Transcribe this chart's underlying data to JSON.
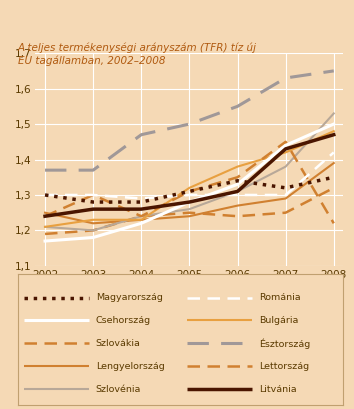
{
  "title": "A teljes termékenységi arányszám (TFR) tíz új\nEU tagállamban, 2002–2008",
  "years": [
    2002,
    2003,
    2004,
    2005,
    2006,
    2007,
    2008
  ],
  "series": [
    {
      "name": "Magyarország",
      "values": [
        1.3,
        1.28,
        1.28,
        1.31,
        1.34,
        1.32,
        1.35
      ],
      "color": "#4a1500",
      "linestyle": "dotted",
      "linewidth": 2.5,
      "zorder": 6,
      "dashes": null
    },
    {
      "name": "Csehország",
      "values": [
        1.17,
        1.18,
        1.22,
        1.28,
        1.33,
        1.44,
        1.5
      ],
      "color": "#ffffff",
      "linestyle": "solid",
      "linewidth": 2.2,
      "zorder": 5,
      "dashes": null
    },
    {
      "name": "Szlovákia",
      "values": [
        1.19,
        1.2,
        1.24,
        1.25,
        1.24,
        1.25,
        1.32
      ],
      "color": "#d08030",
      "linestyle": "dashed",
      "linewidth": 1.8,
      "zorder": 3,
      "dashes": [
        5,
        3
      ]
    },
    {
      "name": "Lengyelország",
      "values": [
        1.25,
        1.22,
        1.23,
        1.24,
        1.27,
        1.29,
        1.39
      ],
      "color": "#d08030",
      "linestyle": "solid",
      "linewidth": 1.5,
      "zorder": 3,
      "dashes": null
    },
    {
      "name": "Szlovénia",
      "values": [
        1.21,
        1.2,
        1.24,
        1.26,
        1.31,
        1.38,
        1.53
      ],
      "color": "#b8a898",
      "linestyle": "solid",
      "linewidth": 1.5,
      "zorder": 3,
      "dashes": null
    },
    {
      "name": "Románia",
      "values": [
        1.3,
        1.3,
        1.29,
        1.3,
        1.3,
        1.3,
        1.42
      ],
      "color": "#ffffff",
      "linestyle": "dashed",
      "linewidth": 1.8,
      "zorder": 4,
      "dashes": [
        5,
        3
      ]
    },
    {
      "name": "Bulgária",
      "values": [
        1.21,
        1.23,
        1.23,
        1.32,
        1.38,
        1.42,
        1.48
      ],
      "color": "#e8a040",
      "linestyle": "solid",
      "linewidth": 1.5,
      "zorder": 3,
      "dashes": null
    },
    {
      "name": "Észtország",
      "values": [
        1.37,
        1.37,
        1.47,
        1.5,
        1.55,
        1.63,
        1.65
      ],
      "color": "#a09898",
      "linestyle": "dashed",
      "linewidth": 2.2,
      "zorder": 4,
      "dashes": [
        7,
        4
      ]
    },
    {
      "name": "Lettország",
      "values": [
        1.24,
        1.3,
        1.24,
        1.31,
        1.35,
        1.45,
        1.22
      ],
      "color": "#d08030",
      "linestyle": "dashed",
      "linewidth": 1.8,
      "zorder": 3,
      "dashes": [
        5,
        3
      ]
    },
    {
      "name": "Litvánia",
      "values": [
        1.24,
        1.26,
        1.26,
        1.28,
        1.31,
        1.43,
        1.47
      ],
      "color": "#4a1500",
      "linestyle": "solid",
      "linewidth": 2.5,
      "zorder": 6,
      "dashes": null
    }
  ],
  "ylim": [
    1.1,
    1.7
  ],
  "yticks": [
    1.1,
    1.2,
    1.3,
    1.4,
    1.5,
    1.6,
    1.7
  ],
  "background_color": "#f5d9b5",
  "plot_bg_color": "#f5d9b5",
  "grid_color": "#ffffff",
  "title_color": "#b05a10",
  "legend_entries": [
    {
      "label": "Magyarország",
      "color": "#4a1500",
      "linestyle": "dotted",
      "linewidth": 2.5,
      "dashes": null
    },
    {
      "label": "Románia",
      "color": "#ffffff",
      "linestyle": "dashed",
      "linewidth": 1.8,
      "dashes": [
        5,
        3
      ]
    },
    {
      "label": "Csehország",
      "color": "#ffffff",
      "linestyle": "solid",
      "linewidth": 2.2,
      "dashes": null
    },
    {
      "label": "Bulgária",
      "color": "#e8a040",
      "linestyle": "solid",
      "linewidth": 1.5,
      "dashes": null
    },
    {
      "label": "Szlovákia",
      "color": "#d08030",
      "linestyle": "dashed",
      "linewidth": 1.8,
      "dashes": [
        5,
        3
      ]
    },
    {
      "label": "Észtország",
      "color": "#a09898",
      "linestyle": "dashed",
      "linewidth": 2.2,
      "dashes": [
        7,
        4
      ]
    },
    {
      "label": "Lengyelország",
      "color": "#d08030",
      "linestyle": "solid",
      "linewidth": 1.5,
      "dashes": null
    },
    {
      "label": "Lettország",
      "color": "#d08030",
      "linestyle": "dashed",
      "linewidth": 1.8,
      "dashes": [
        5,
        3
      ]
    },
    {
      "label": "Szlovénia",
      "color": "#b8a898",
      "linestyle": "solid",
      "linewidth": 1.5,
      "dashes": null
    },
    {
      "label": "Litvánia",
      "color": "#4a1500",
      "linestyle": "solid",
      "linewidth": 2.5,
      "dashes": null
    }
  ]
}
